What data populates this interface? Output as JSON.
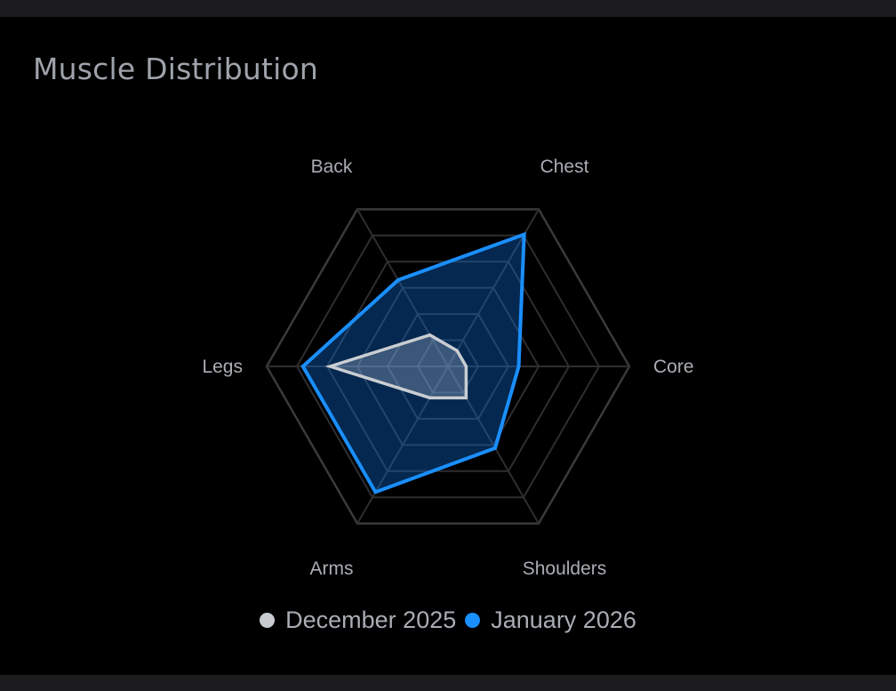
{
  "card": {
    "title": "Muscle Distribution"
  },
  "chart_data": {
    "type": "radar",
    "title": "Muscle Distribution",
    "categories": [
      "Chest",
      "Core",
      "Shoulders",
      "Arms",
      "Legs",
      "Back"
    ],
    "rmax": 10,
    "grid": true,
    "grid_levels": 6,
    "legend_position": "bottom",
    "series": [
      {
        "name": "December 2025",
        "color": "#c9cdd2",
        "values": [
          1.0,
          1.0,
          2.0,
          2.0,
          6.5,
          2.0
        ]
      },
      {
        "name": "January 2026",
        "color": "#1a8fff",
        "values": [
          8.4,
          3.9,
          5.2,
          8.0,
          8.0,
          5.5
        ]
      }
    ]
  }
}
